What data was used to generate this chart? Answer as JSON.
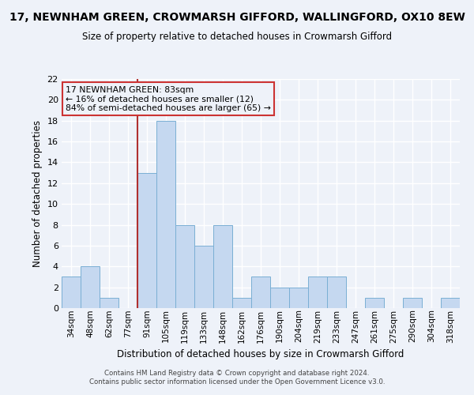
{
  "title": "17, NEWNHAM GREEN, CROWMARSH GIFFORD, WALLINGFORD, OX10 8EW",
  "subtitle": "Size of property relative to detached houses in Crowmarsh Gifford",
  "xlabel": "Distribution of detached houses by size in Crowmarsh Gifford",
  "ylabel": "Number of detached properties",
  "categories": [
    "34sqm",
    "48sqm",
    "62sqm",
    "77sqm",
    "91sqm",
    "105sqm",
    "119sqm",
    "133sqm",
    "148sqm",
    "162sqm",
    "176sqm",
    "190sqm",
    "204sqm",
    "219sqm",
    "233sqm",
    "247sqm",
    "261sqm",
    "275sqm",
    "290sqm",
    "304sqm",
    "318sqm"
  ],
  "values": [
    3,
    4,
    1,
    0,
    13,
    18,
    8,
    6,
    8,
    1,
    3,
    2,
    2,
    3,
    3,
    0,
    1,
    0,
    1,
    0,
    1
  ],
  "bar_color": "#c5d8f0",
  "bar_edge_color": "#7aafd4",
  "vline_x_index": 4,
  "vline_color": "#b03030",
  "annotation_line1": "17 NEWNHAM GREEN: 83sqm",
  "annotation_line2": "← 16% of detached houses are smaller (12)",
  "annotation_line3": "84% of semi-detached houses are larger (65) →",
  "annotation_box_color": "#cc3333",
  "ylim": [
    0,
    22
  ],
  "yticks": [
    0,
    2,
    4,
    6,
    8,
    10,
    12,
    14,
    16,
    18,
    20,
    22
  ],
  "background_color": "#eef2f9",
  "grid_color": "#ffffff",
  "footer_line1": "Contains HM Land Registry data © Crown copyright and database right 2024.",
  "footer_line2": "Contains public sector information licensed under the Open Government Licence v3.0."
}
